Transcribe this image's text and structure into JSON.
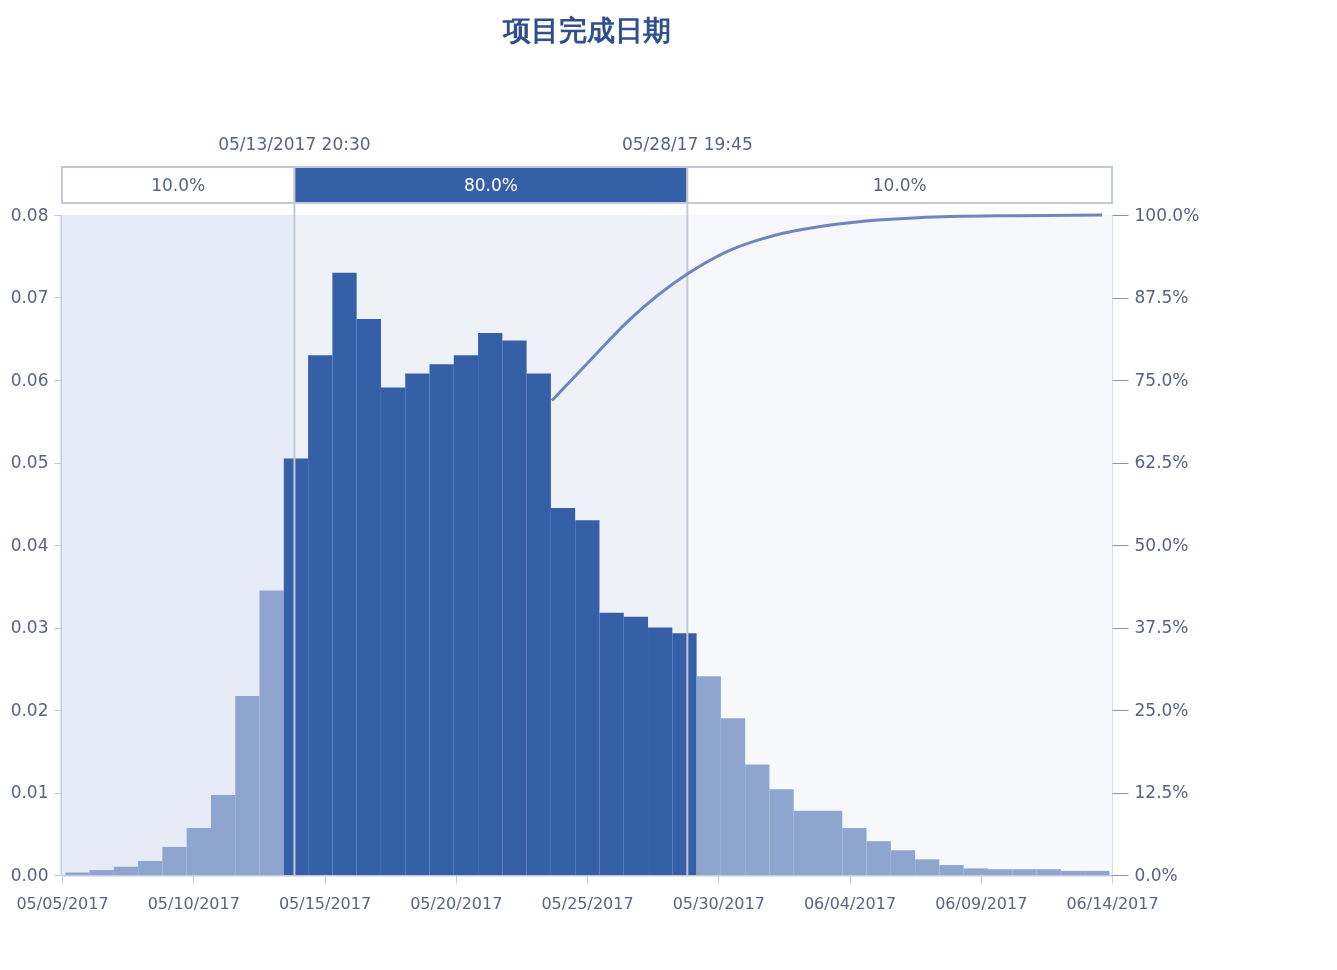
{
  "chart_data": {
    "type": "histogram",
    "title": "项目完成日期",
    "bins": [
      "2017-05-05T03:00",
      "2017-05-06T01:12",
      "2017-05-06T23:24",
      "2017-05-07T21:36",
      "2017-05-08T19:48",
      "2017-05-09T18:00",
      "2017-05-10T16:12",
      "2017-05-11T14:24",
      "2017-05-12T12:36",
      "2017-05-13T10:48",
      "2017-05-14T09:00",
      "2017-05-15T07:12",
      "2017-05-16T05:24",
      "2017-05-17T03:36",
      "2017-05-18T01:48",
      "2017-05-19T00:00",
      "2017-05-19T22:12",
      "2017-05-20T20:24",
      "2017-05-21T18:36",
      "2017-05-22T16:48",
      "2017-05-23T15:00",
      "2017-05-24T13:12",
      "2017-05-25T11:24",
      "2017-05-26T09:36",
      "2017-05-27T07:48",
      "2017-05-28T06:00",
      "2017-05-29T04:12",
      "2017-05-30T02:24",
      "2017-05-31T00:36",
      "2017-05-31T22:48",
      "2017-06-01T21:00",
      "2017-06-02T19:12",
      "2017-06-03T17:24",
      "2017-06-04T15:36",
      "2017-06-05T13:48",
      "2017-06-06T12:00",
      "2017-06-07T10:12",
      "2017-06-08T08:24",
      "2017-06-09T06:36",
      "2017-06-10T04:48",
      "2017-06-11T03:00",
      "2017-06-12T01:12",
      "2017-06-12T23:24",
      "2017-06-13T21:36"
    ],
    "values": [
      0.0003,
      0.0006,
      0.001,
      0.0017,
      0.0034,
      0.0057,
      0.0097,
      0.0217,
      0.0345,
      0.0505,
      0.063,
      0.073,
      0.0674,
      0.0591,
      0.0608,
      0.0619,
      0.063,
      0.0657,
      0.0648,
      0.0608,
      0.0445,
      0.043,
      0.0318,
      0.0313,
      0.03,
      0.0293,
      0.0241,
      0.019,
      0.0134,
      0.0104,
      0.0078,
      0.0078,
      0.0057,
      0.0041,
      0.003,
      0.0019,
      0.0012,
      0.0008,
      0.0007,
      0.0007,
      0.0007,
      0.0005,
      0.0005
    ],
    "colors": [
      "#8ea6cf",
      "#8ea6cf",
      "#8ea6cf",
      "#8ea6cf",
      "#8ea6cf",
      "#8ea6cf",
      "#8ea6cf",
      "#8ea6cf",
      "#8ea6cf",
      "#3560a8",
      "#3560a8",
      "#3560a8",
      "#3560a8",
      "#3560a8",
      "#3560a8",
      "#3560a8",
      "#3560a8",
      "#3560a8",
      "#3560a8",
      "#3560a8",
      "#3560a8",
      "#3560a8",
      "#3560a8",
      "#3560a8",
      "#3560a8",
      "#3560a8",
      "#8ea6cf",
      "#8ea6cf",
      "#8ea6cf",
      "#8ea6cf",
      "#8ea6cf",
      "#8ea6cf",
      "#8ea6cf",
      "#8ea6cf",
      "#8ea6cf",
      "#8ea6cf",
      "#8ea6cf",
      "#8ea6cf",
      "#8ea6cf",
      "#8ea6cf",
      "#8ea6cf",
      "#8ea6cf",
      "#8ea6cf"
    ],
    "series": [
      {
        "type": "line",
        "axis": "y2",
        "color": "#6f86bd",
        "x": [
          "2017-05-23T16:00",
          "2017-05-25T03:00",
          "2017-05-26T14:00",
          "2017-05-28T21:00",
          "2017-05-30T06:00",
          "2017-06-01T03:00",
          "2017-06-02T23:00",
          "2017-06-06T15:00",
          "2017-06-10T07:00",
          "2017-06-13T15:00"
        ],
        "values": [
          71.9,
          78,
          84,
          91.2,
          94.3,
          96.9,
          98.3,
          99.6,
          99.9,
          100
        ]
      }
    ],
    "xlim": [
      "2017-05-05",
      "2017-06-14"
    ],
    "xticks": [
      {
        "value": "2017-05-05",
        "label": "05/05/2017"
      },
      {
        "value": "2017-05-10",
        "label": "05/10/2017"
      },
      {
        "value": "2017-05-15",
        "label": "05/15/2017"
      },
      {
        "value": "2017-05-20",
        "label": "05/20/2017"
      },
      {
        "value": "2017-05-25",
        "label": "05/25/2017"
      },
      {
        "value": "2017-05-30",
        "label": "05/30/2017"
      },
      {
        "value": "2017-06-04",
        "label": "06/04/2017"
      },
      {
        "value": "2017-06-09",
        "label": "06/09/2017"
      },
      {
        "value": "2017-06-14",
        "label": "06/14/2017"
      }
    ],
    "ylim": [
      0,
      0.08
    ],
    "yticks": [
      {
        "value": 0,
        "label": "0.00"
      },
      0.01,
      0.02,
      0.03,
      0.04,
      0.05,
      0.06,
      0.07,
      0.08
    ],
    "y2lim": [
      0,
      100
    ],
    "y2ticks": [
      {
        "value": 0,
        "label": "0.0%"
      },
      {
        "value": 12.5,
        "label": "12.5%"
      },
      {
        "value": 25,
        "label": "25.0%"
      },
      {
        "value": 37.5,
        "label": "37.5%"
      },
      {
        "value": 50,
        "label": "50.0%"
      },
      {
        "value": 62.5,
        "label": "62.5%"
      },
      {
        "value": 75,
        "label": "75.0%"
      },
      {
        "value": 87.5,
        "label": "87.5%"
      },
      {
        "value": 100,
        "label": "100.0%"
      }
    ],
    "ref_lines": [
      {
        "axis": "x",
        "value": "2017-05-13T20:30",
        "label": "05/13/2017   20:30",
        "color": "#c3c9d8"
      },
      {
        "axis": "x",
        "value": "2017-05-28T19:45",
        "label": "05/28/17   19:45",
        "color": "#c3c9d8"
      }
    ],
    "bands": [
      {
        "axis": "x",
        "from": "2017-05-05",
        "to": "2017-05-13T20:30",
        "label": "10.0%",
        "color": "#e6ebf5"
      },
      {
        "axis": "x",
        "from": "2017-05-13T20:30",
        "to": "2017-05-28T19:45",
        "label": "80.0%",
        "color": "#eef1f8"
      },
      {
        "axis": "x",
        "from": "2017-05-28T19:45",
        "to": "2017-06-14",
        "label": "10.0%",
        "color": "#f6f8fb"
      }
    ]
  }
}
